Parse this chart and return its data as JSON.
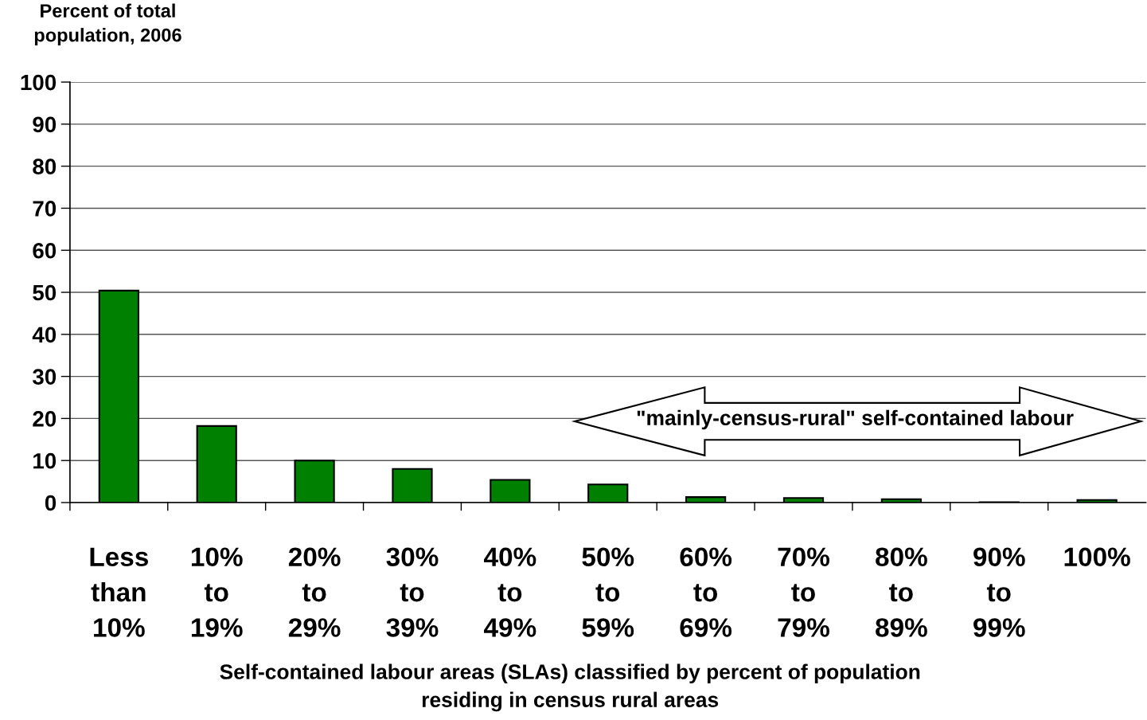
{
  "chart_data": {
    "type": "bar",
    "ylabel": "Percent of total\npopulation, 2006",
    "xlabel": "Self-contained labour areas (SLAs) classified by percent of population\nresiding in census rural areas",
    "categories": [
      "Less\nthan\n10%",
      "10%\nto\n19%",
      "20%\nto\n29%",
      "30%\nto\n39%",
      "40%\nto\n49%",
      "50%\nto\n59%",
      "60%\nto\n69%",
      "70%\nto\n79%",
      "80%\nto\n89%",
      "90%\nto\n99%",
      "100%"
    ],
    "values": [
      50.4,
      18.2,
      10.0,
      8.0,
      5.4,
      4.3,
      1.3,
      1.1,
      0.8,
      0.1,
      0.6
    ],
    "color": "#008000",
    "ylim": [
      0,
      100
    ],
    "yticks": [
      0,
      10,
      20,
      30,
      40,
      50,
      60,
      70,
      80,
      90,
      100
    ],
    "grid": "y",
    "annotations": [
      "\"mainly-census-rural\" self-contained labour"
    ]
  }
}
